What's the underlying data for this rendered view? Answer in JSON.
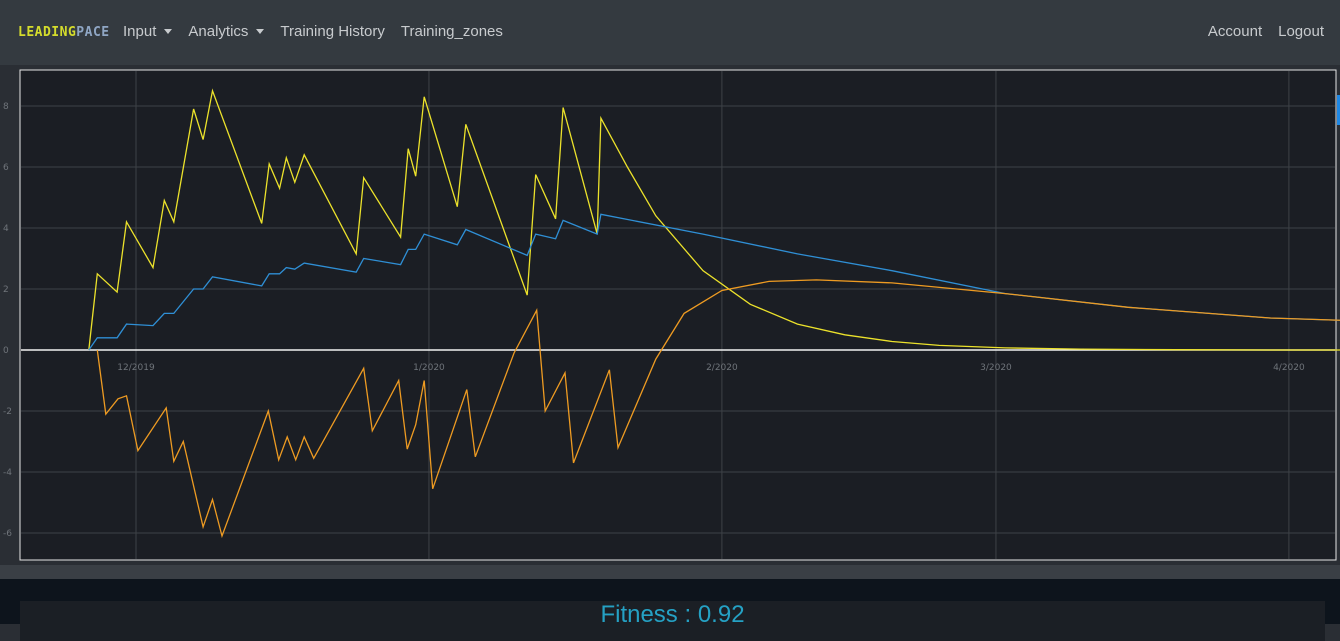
{
  "brand": {
    "part1": "LEADING",
    "part2": "PACE"
  },
  "nav": {
    "input": "Input",
    "analytics": "Analytics",
    "history": "Training History",
    "zones": "Training_zones",
    "account": "Account",
    "logout": "Logout"
  },
  "fitness": {
    "label": "Fitness",
    "separator": " : ",
    "value": "0.92"
  },
  "colors": {
    "fatigue": "#ece22b",
    "fitness": "#2f8fd5",
    "form": "#ee9b22",
    "plot_bg": "#1b1e24",
    "grid": "#3e4247"
  },
  "chart_data": {
    "type": "line",
    "ylim": [
      -6.8,
      9.2
    ],
    "yticks": [
      -6,
      -4,
      -2,
      0,
      2,
      4,
      6,
      8
    ],
    "x_range_days": [
      0,
      137
    ],
    "xticks": [
      {
        "label": "12/2019",
        "day": 0
      },
      {
        "label": "1/2020",
        "day": 31
      },
      {
        "label": "2/2020",
        "day": 62
      },
      {
        "label": "3/2020",
        "day": 91
      },
      {
        "label": "4/2020",
        "day": 122
      }
    ],
    "series": [
      {
        "points": [
          [
            -5.0,
            0
          ],
          [
            -4.1,
            2.5
          ],
          [
            -2.0,
            1.9
          ],
          [
            -1.0,
            4.2
          ],
          [
            1.8,
            2.7
          ],
          [
            3.0,
            4.9
          ],
          [
            4.0,
            4.2
          ],
          [
            6.1,
            7.9
          ],
          [
            7.1,
            6.9
          ],
          [
            8.1,
            8.5
          ],
          [
            13.3,
            4.15
          ],
          [
            14.1,
            6.1
          ],
          [
            15.2,
            5.3
          ],
          [
            15.9,
            6.3
          ],
          [
            16.8,
            5.5
          ],
          [
            17.8,
            6.4
          ],
          [
            23.3,
            3.15
          ],
          [
            24.1,
            5.65
          ],
          [
            28.0,
            3.7
          ],
          [
            28.8,
            6.6
          ],
          [
            29.6,
            5.7
          ],
          [
            30.5,
            8.3
          ],
          [
            34.0,
            4.7
          ],
          [
            34.9,
            7.4
          ],
          [
            41.4,
            1.8
          ],
          [
            42.3,
            5.75
          ],
          [
            44.4,
            4.3
          ],
          [
            45.2,
            7.95
          ],
          [
            48.8,
            3.8
          ],
          [
            49.2,
            7.6
          ],
          [
            52,
            6.0
          ],
          [
            55,
            4.4
          ],
          [
            60,
            2.6
          ],
          [
            65,
            1.5
          ],
          [
            70,
            0.85
          ],
          [
            75,
            0.5
          ],
          [
            80,
            0.28
          ],
          [
            85,
            0.15
          ],
          [
            92,
            0.07
          ],
          [
            100,
            0.03
          ],
          [
            110,
            0.01
          ],
          [
            120,
            0
          ],
          [
            130,
            0
          ]
        ]
      },
      {
        "points": [
          [
            -5.0,
            0
          ],
          [
            -4.1,
            0.4
          ],
          [
            -2.0,
            0.4
          ],
          [
            -1.0,
            0.85
          ],
          [
            1.8,
            0.8
          ],
          [
            3.0,
            1.2
          ],
          [
            4.0,
            1.2
          ],
          [
            6.1,
            2.0
          ],
          [
            7.1,
            2.0
          ],
          [
            8.1,
            2.4
          ],
          [
            13.3,
            2.1
          ],
          [
            14.1,
            2.5
          ],
          [
            15.2,
            2.5
          ],
          [
            15.9,
            2.7
          ],
          [
            16.8,
            2.65
          ],
          [
            17.8,
            2.85
          ],
          [
            23.3,
            2.55
          ],
          [
            24.1,
            3.0
          ],
          [
            28.0,
            2.8
          ],
          [
            28.8,
            3.3
          ],
          [
            29.6,
            3.3
          ],
          [
            30.5,
            3.8
          ],
          [
            34.0,
            3.45
          ],
          [
            34.9,
            3.95
          ],
          [
            41.4,
            3.1
          ],
          [
            42.3,
            3.8
          ],
          [
            44.4,
            3.65
          ],
          [
            45.2,
            4.25
          ],
          [
            48.8,
            3.8
          ],
          [
            49.2,
            4.45
          ],
          [
            60,
            3.8
          ],
          [
            70,
            3.15
          ],
          [
            80,
            2.6
          ],
          [
            92,
            1.85
          ],
          [
            105,
            1.4
          ],
          [
            120,
            1.05
          ],
          [
            133,
            0.92
          ]
        ]
      },
      {
        "points": [
          [
            -4.1,
            0
          ],
          [
            -3.2,
            -2.1
          ],
          [
            -1.9,
            -1.6
          ],
          [
            -1.0,
            -1.5
          ],
          [
            0.2,
            -3.3
          ],
          [
            3.2,
            -1.9
          ],
          [
            4.0,
            -3.65
          ],
          [
            5.0,
            -3.0
          ],
          [
            7.1,
            -5.8
          ],
          [
            8.1,
            -4.9
          ],
          [
            9.1,
            -6.1
          ],
          [
            14.0,
            -2.0
          ],
          [
            15.1,
            -3.6
          ],
          [
            16.0,
            -2.85
          ],
          [
            16.9,
            -3.6
          ],
          [
            17.8,
            -2.85
          ],
          [
            18.8,
            -3.55
          ],
          [
            24.1,
            -0.6
          ],
          [
            25.0,
            -2.65
          ],
          [
            27.8,
            -1.0
          ],
          [
            28.7,
            -3.25
          ],
          [
            29.6,
            -2.45
          ],
          [
            30.5,
            -1.0
          ],
          [
            31.4,
            -4.55
          ],
          [
            35.0,
            -1.3
          ],
          [
            35.9,
            -3.5
          ],
          [
            40,
            -0.1
          ],
          [
            42.4,
            1.3
          ],
          [
            43.3,
            -2.0
          ],
          [
            45.4,
            -0.75
          ],
          [
            46.3,
            -3.7
          ],
          [
            50.1,
            -0.65
          ],
          [
            51.0,
            -3.2
          ],
          [
            55,
            -0.3
          ],
          [
            58,
            1.2
          ],
          [
            62,
            1.95
          ],
          [
            67,
            2.25
          ],
          [
            72,
            2.3
          ],
          [
            80,
            2.2
          ],
          [
            92,
            1.85
          ],
          [
            105,
            1.4
          ],
          [
            120,
            1.05
          ],
          [
            133,
            0.92
          ]
        ]
      }
    ]
  }
}
